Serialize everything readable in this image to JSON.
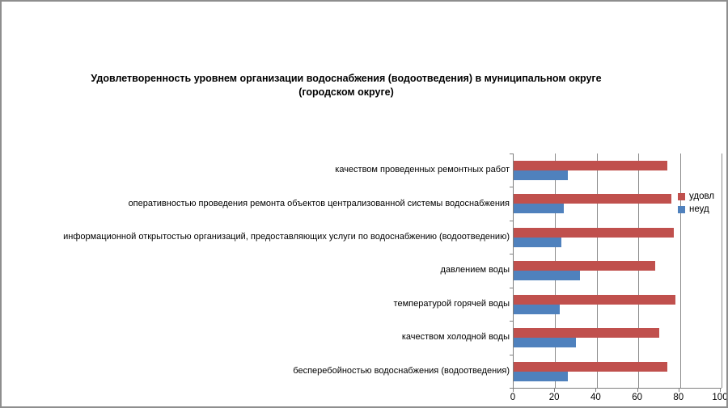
{
  "chart_data": {
    "type": "bar",
    "orientation": "horizontal",
    "title": "Удовлетворенность уровнем организации водоснабжения (водоотведения) в муниципальном округе (городском округе)",
    "title_lines": [
      "Удовлетворенность уровнем организации водоснабжения (водоотведения) в муниципальном округе",
      "(городском округе)"
    ],
    "categories": [
      "качеством проведенных ремонтных работ",
      "оперативностью проведения ремонта объектов централизованной системы водоснабжения",
      "информационной открытостью организаций, предоставляющих услуги по водоснабжению (водоотведению)",
      "давлением воды",
      "температурой горячей воды",
      "качеством холодной воды",
      "бесперебойностью водоснабжения (водоотведения)"
    ],
    "series": [
      {
        "name": "удовл",
        "color": "#C0504D",
        "values": [
          74,
          76,
          77,
          68,
          78,
          70,
          74
        ]
      },
      {
        "name": "неуд",
        "color": "#4F81BD",
        "values": [
          26,
          24,
          23,
          32,
          22,
          30,
          26
        ]
      }
    ],
    "xlim": [
      0,
      100
    ],
    "xticks": [
      0,
      20,
      40,
      60,
      80,
      100
    ],
    "grid": "vertical-only",
    "legend_position": "right"
  },
  "colors": {
    "grid": "#8c8c8c",
    "axis": "#7f7f7f",
    "border": "#8e8e8e",
    "background": "#ffffff",
    "text": "#000000"
  }
}
